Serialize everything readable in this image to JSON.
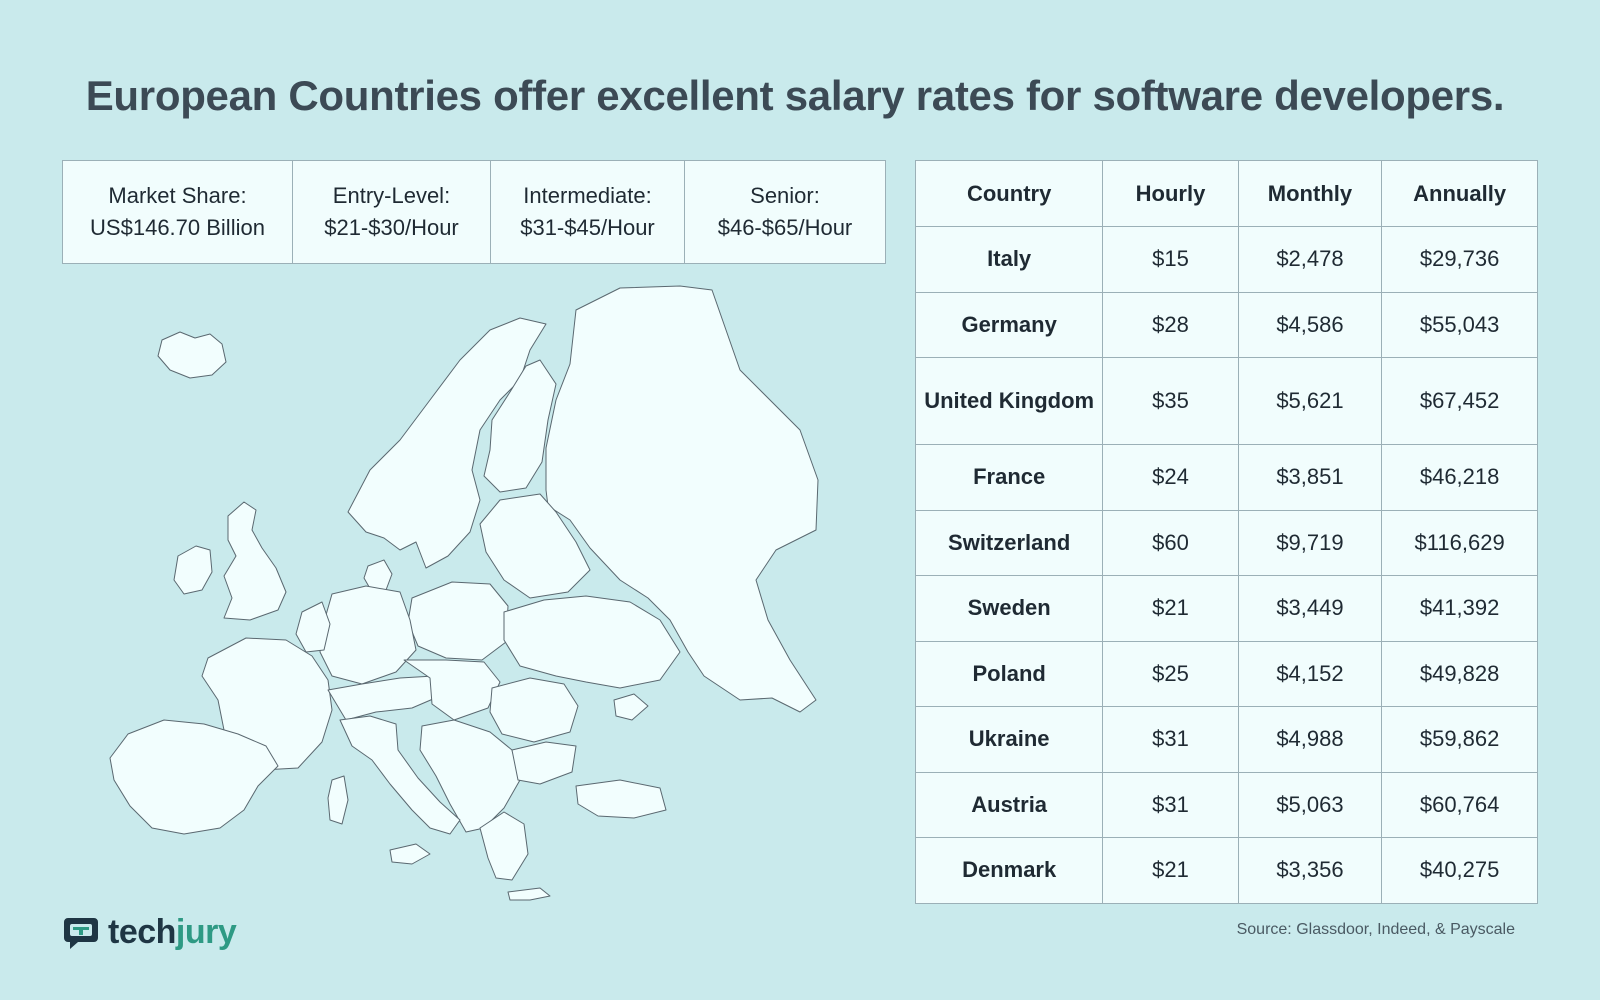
{
  "title": "European Countries offer excellent salary rates for software developers.",
  "stats": [
    {
      "label": "Market Share:",
      "value": "US$146.70 Billion"
    },
    {
      "label": "Entry-Level:",
      "value": "$21-$30/Hour"
    },
    {
      "label": "Intermediate:",
      "value": "$31-$45/Hour"
    },
    {
      "label": "Senior:",
      "value": "$46-$65/Hour"
    }
  ],
  "table": {
    "headers": [
      "Country",
      "Hourly",
      "Monthly",
      "Annually"
    ],
    "rows": [
      [
        "Italy",
        "$15",
        "$2,478",
        "$29,736"
      ],
      [
        "Germany",
        "$28",
        "$4,586",
        "$55,043"
      ],
      [
        "United Kingdom",
        "$35",
        "$5,621",
        "$67,452"
      ],
      [
        "France",
        "$24",
        "$3,851",
        "$46,218"
      ],
      [
        "Switzerland",
        "$60",
        "$9,719",
        "$116,629"
      ],
      [
        "Sweden",
        "$21",
        "$3,449",
        "$41,392"
      ],
      [
        "Poland",
        "$25",
        "$4,152",
        "$49,828"
      ],
      [
        "Ukraine",
        "$31",
        "$4,988",
        "$59,862"
      ],
      [
        "Austria",
        "$31",
        "$5,063",
        "$60,764"
      ],
      [
        "Denmark",
        "$21",
        "$3,356",
        "$40,275"
      ]
    ]
  },
  "logo": {
    "part1": "tech",
    "part2": "jury",
    "icon": "chat-bubble-icon"
  },
  "source": "Source: Glassdoor, Indeed, & Payscale",
  "colors": {
    "background": "#c9eaec",
    "panel": "#f1fdfd",
    "border": "#9bb0b7",
    "title": "#3c4a55",
    "brand_dark": "#1f3644",
    "brand_green": "#2e9a84"
  }
}
